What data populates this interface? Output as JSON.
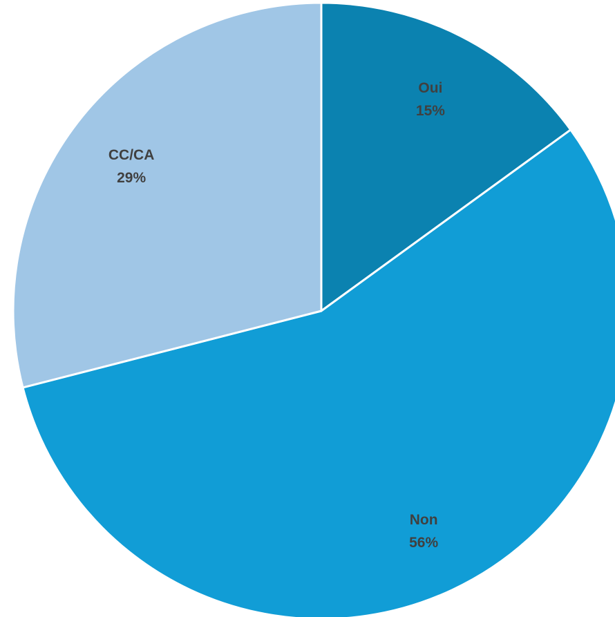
{
  "chart_data": {
    "type": "pie",
    "title": "",
    "start_angle_deg": 0,
    "direction": "clockwise",
    "slices": [
      {
        "label": "Oui",
        "value": 15,
        "value_label": "15%",
        "color": "#0B82B0"
      },
      {
        "label": "Non",
        "value": 56,
        "value_label": "56%",
        "color": "#119DD6"
      },
      {
        "label": "CC/CA",
        "value": 29,
        "value_label": "29%",
        "color": "#A0C6E6"
      }
    ]
  }
}
